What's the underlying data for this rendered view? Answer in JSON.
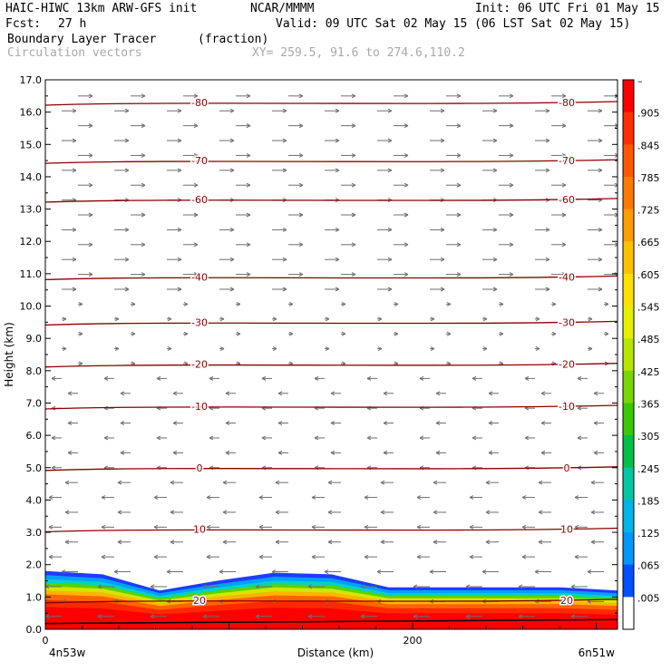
{
  "header": {
    "model": "HAIC-HIWC 13km ARW-GFS init",
    "org": "NCAR/MMMM",
    "init": "Init: 06 UTC Fri 01 May 15",
    "fcst_label": "Fcst:",
    "fcst_value": "27 h",
    "valid": "Valid: 09 UTC Sat 02 May 15 (06 LST Sat 02 May 15)",
    "field": "Boundary Layer Tracer",
    "field_units": "(fraction)",
    "vectors": "Circulation vectors",
    "xy": "XY= 259.5, 91.6 to 274.6,110.2"
  },
  "chart_data": {
    "type": "heatmap",
    "ylabel": "Height (km)",
    "xlabel": "Distance (km)",
    "ylim": [
      0,
      17
    ],
    "yticks": [
      "0.0",
      "1.0",
      "2.0",
      "3.0",
      "4.0",
      "5.0",
      "6.0",
      "7.0",
      "8.0",
      "9.0",
      "10.0",
      "11.0",
      "12.0",
      "13.0",
      "14.0",
      "15.0",
      "16.0",
      "17.0"
    ],
    "xticks": [
      {
        "value": 0,
        "label": "0"
      },
      {
        "value": 200,
        "label": "200"
      }
    ],
    "x_end_labels": {
      "left": "4n53w",
      "right": "6n51w"
    },
    "colorbar": {
      "labels": [
        "–",
        ".905",
        ".845",
        ".785",
        ".725",
        ".665",
        ".605",
        ".545",
        ".485",
        ".425",
        ".365",
        ".305",
        ".245",
        ".185",
        ".125",
        ".065",
        ".005"
      ],
      "colors": [
        "#ff0000",
        "#ff2e00",
        "#ff5600",
        "#ff7a00",
        "#ff9c00",
        "#ffc000",
        "#ffe000",
        "#e6f000",
        "#b8e600",
        "#7ad600",
        "#3cc800",
        "#00c04a",
        "#00c8a0",
        "#00b4e6",
        "#0096ff",
        "#0050ff",
        "#ffffff"
      ]
    },
    "temperature_contours": [
      {
        "label": "-80",
        "y": 16.3
      },
      {
        "label": "-70",
        "y": 14.5
      },
      {
        "label": "-60",
        "y": 13.3
      },
      {
        "label": "-40",
        "y": 10.9
      },
      {
        "label": "-30",
        "y": 9.5
      },
      {
        "label": "-20",
        "y": 8.2
      },
      {
        "label": "-10",
        "y": 6.9
      },
      {
        "label": "0",
        "y": 5.0
      },
      {
        "label": "10",
        "y": 3.1
      },
      {
        "label": "20",
        "y": 0.9
      }
    ],
    "tracer_top_km": [
      1.8,
      1.7,
      1.2,
      1.5,
      1.75,
      1.7,
      1.3,
      1.3,
      1.3,
      1.3,
      1.2
    ]
  }
}
